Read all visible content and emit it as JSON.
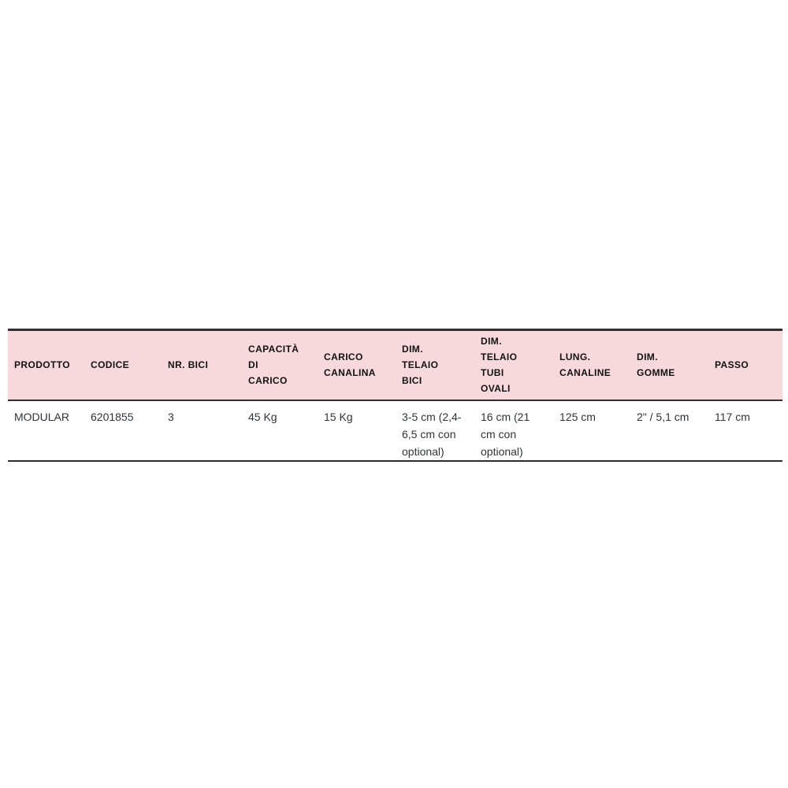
{
  "page": {
    "background": "#ffffff"
  },
  "table": {
    "columns": [
      {
        "label": "PRODOTTO"
      },
      {
        "label": "CODICE"
      },
      {
        "label": "NR. BICI"
      },
      {
        "label": "CAPACITÀ\nDI\nCARICO"
      },
      {
        "label": "CARICO\nCANALINA"
      },
      {
        "label": "DIM.\nTELAIO\nBICI"
      },
      {
        "label": "DIM.\nTELAIO\nTUBI\nOVALI"
      },
      {
        "label": "LUNG.\nCANALINE"
      },
      {
        "label": "DIM.\nGOMME"
      },
      {
        "label": "PASSO"
      }
    ],
    "rows": [
      [
        "MODULAR",
        "6201855",
        "3",
        "45 Kg",
        "15 Kg",
        "3-5 cm (2,4-\n6,5 cm con\noptional)",
        "16 cm (21\ncm con\noptional)",
        "125 cm",
        "2\" / 5,1 cm",
        "117 cm"
      ]
    ],
    "colors": {
      "header_bg": "#f6d8dd",
      "border": "#2d2f31",
      "header_text": "#121212",
      "cell_text": "#2e343a"
    }
  }
}
